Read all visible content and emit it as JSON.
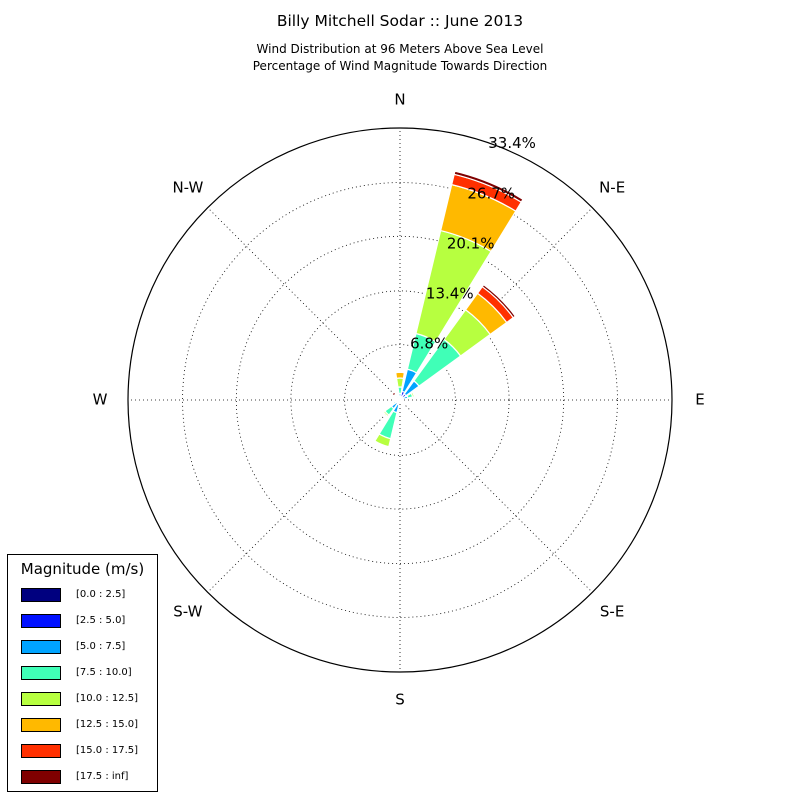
{
  "header": {
    "title": "Billy Mitchell Sodar :: June 2013",
    "subtitle_line1": "Wind Distribution at 96 Meters Above Sea Level",
    "subtitle_line2": "Percentage of Wind Magnitude Towards Direction"
  },
  "chart_data": {
    "type": "windrose",
    "title": "Billy Mitchell Sodar :: June 2013",
    "subtitle": "Wind Distribution at 96 Meters Above Sea Level\nPercentage of Wind Magnitude Towards Direction",
    "directions": [
      "N",
      "NNE",
      "NE",
      "ENE",
      "E",
      "ESE",
      "SE",
      "SSE",
      "S",
      "SSW",
      "SW",
      "WSW",
      "W",
      "WNW",
      "NW",
      "NNW"
    ],
    "direction_labels": [
      "N",
      "N-E",
      "E",
      "S-E",
      "S",
      "S-W",
      "W",
      "N-W"
    ],
    "radial_ticks": [
      6.8,
      13.4,
      20.1,
      26.7,
      33.4
    ],
    "rmax": 33.4,
    "grid": true,
    "legend_title": "Magnitude (m/s)",
    "legend_position": "lower-left",
    "bins": [
      {
        "label": "[0.0 : 2.5]",
        "color": "#00007f"
      },
      {
        "label": "[2.5 : 5.0]",
        "color": "#0010ff"
      },
      {
        "label": "[5.0 : 7.5]",
        "color": "#00a4ff"
      },
      {
        "label": "[7.5 : 10.0]",
        "color": "#40ffb7"
      },
      {
        "label": "[10.0 : 12.5]",
        "color": "#b7ff40"
      },
      {
        "label": "[12.5 : 15.0]",
        "color": "#ffb900"
      },
      {
        "label": "[15.0 : 17.5]",
        "color": "#ff3000"
      },
      {
        "label": "[17.5 : inf]",
        "color": "#7f0000"
      }
    ],
    "series": [
      {
        "direction": "N",
        "values": [
          0.1,
          0.2,
          0.5,
          0.8,
          1.1,
          0.7,
          0.1,
          0.1
        ]
      },
      {
        "direction": "NNE",
        "values": [
          0.2,
          0.9,
          2.8,
          4.5,
          13.0,
          5.8,
          1.3,
          0.4
        ]
      },
      {
        "direction": "NE",
        "values": [
          0.2,
          0.7,
          2.0,
          6.3,
          4.5,
          2.5,
          1.0,
          0.3
        ]
      },
      {
        "direction": "ENE",
        "values": [
          0.1,
          0.3,
          0.6,
          0.6,
          0.2,
          0,
          0,
          0
        ]
      },
      {
        "direction": "E",
        "values": [
          0.1,
          0.2,
          0.1,
          0,
          0,
          0,
          0,
          0
        ]
      },
      {
        "direction": "ESE",
        "values": [
          0.1,
          0.1,
          0.1,
          0,
          0,
          0,
          0,
          0
        ]
      },
      {
        "direction": "SE",
        "values": [
          0.1,
          0.2,
          0.2,
          0.1,
          0.1,
          0,
          0,
          0
        ]
      },
      {
        "direction": "SSE",
        "values": [
          0.1,
          0.1,
          0.1,
          0,
          0,
          0,
          0,
          0
        ]
      },
      {
        "direction": "S",
        "values": [
          0.1,
          0.1,
          0.1,
          0,
          0,
          0,
          0,
          0
        ]
      },
      {
        "direction": "SSW",
        "values": [
          0.1,
          0.5,
          1.0,
          3.3,
          1.0,
          0,
          0,
          0
        ]
      },
      {
        "direction": "SW",
        "values": [
          0.1,
          0.4,
          0.8,
          1.0,
          0.2,
          0,
          0,
          0
        ]
      },
      {
        "direction": "WSW",
        "values": [
          0.1,
          0.2,
          0.3,
          0.2,
          0,
          0,
          0,
          0
        ]
      },
      {
        "direction": "W",
        "values": [
          0.1,
          0.2,
          0.2,
          0.1,
          0,
          0,
          0,
          0
        ]
      },
      {
        "direction": "WNW",
        "values": [
          0.1,
          0.2,
          0.2,
          0,
          0,
          0,
          0,
          0
        ]
      },
      {
        "direction": "NW",
        "values": [
          0.1,
          0.3,
          0.2,
          0.1,
          0.1,
          0.1,
          0,
          0.3
        ]
      },
      {
        "direction": "NNW",
        "values": [
          0.1,
          0.2,
          0.2,
          0.1,
          0.1,
          0,
          0,
          0
        ]
      }
    ]
  }
}
